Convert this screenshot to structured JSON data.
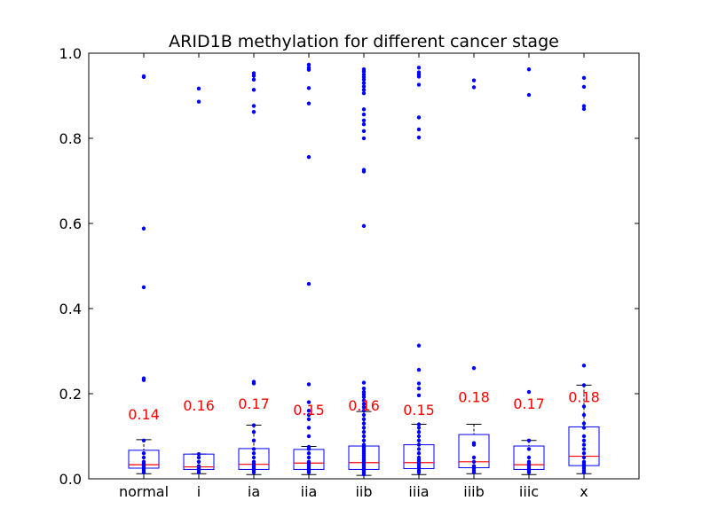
{
  "chart_data": {
    "type": "box",
    "title": "ARID1B methylation for different cancer stage",
    "xlabel": "",
    "ylabel": "",
    "ylim": [
      0.0,
      1.0
    ],
    "yticks": [
      "0.0",
      "0.2",
      "0.4",
      "0.6",
      "0.8",
      "1.0"
    ],
    "categories": [
      "normal",
      "i",
      "ia",
      "iia",
      "iib",
      "iiia",
      "iiib",
      "iiic",
      "x"
    ],
    "boxes": [
      {
        "q1": 0.025,
        "median": 0.033,
        "q3": 0.067,
        "whisker_low": 0.012,
        "whisker_high": 0.092
      },
      {
        "q1": 0.022,
        "median": 0.028,
        "q3": 0.058,
        "whisker_low": 0.012,
        "whisker_high": 0.058
      },
      {
        "q1": 0.022,
        "median": 0.034,
        "q3": 0.071,
        "whisker_low": 0.01,
        "whisker_high": 0.126
      },
      {
        "q1": 0.022,
        "median": 0.037,
        "q3": 0.069,
        "whisker_low": 0.01,
        "whisker_high": 0.076
      },
      {
        "q1": 0.022,
        "median": 0.038,
        "q3": 0.077,
        "whisker_low": 0.008,
        "whisker_high": 0.158
      },
      {
        "q1": 0.024,
        "median": 0.038,
        "q3": 0.08,
        "whisker_low": 0.01,
        "whisker_high": 0.128
      },
      {
        "q1": 0.026,
        "median": 0.04,
        "q3": 0.104,
        "whisker_low": 0.012,
        "whisker_high": 0.128
      },
      {
        "q1": 0.022,
        "median": 0.033,
        "q3": 0.077,
        "whisker_low": 0.01,
        "whisker_high": 0.09
      },
      {
        "q1": 0.031,
        "median": 0.053,
        "q3": 0.122,
        "whisker_low": 0.012,
        "whisker_high": 0.22
      }
    ],
    "points": [
      [
        0.946,
        0.944,
        0.588,
        0.45,
        0.236,
        0.232,
        0.09,
        0.06,
        0.05,
        0.04,
        0.035,
        0.03,
        0.025,
        0.02,
        0.015
      ],
      [
        0.917,
        0.886,
        0.058,
        0.05,
        0.04,
        0.03,
        0.025,
        0.02,
        0.015
      ],
      [
        0.953,
        0.947,
        0.938,
        0.914,
        0.876,
        0.862,
        0.228,
        0.224,
        0.126,
        0.11,
        0.09,
        0.07,
        0.06,
        0.05,
        0.04,
        0.035,
        0.03,
        0.025,
        0.02,
        0.015
      ],
      [
        0.973,
        0.966,
        0.961,
        0.918,
        0.882,
        0.756,
        0.458,
        0.222,
        0.18,
        0.16,
        0.15,
        0.14,
        0.12,
        0.1,
        0.075,
        0.07,
        0.06,
        0.05,
        0.04,
        0.035,
        0.03,
        0.025,
        0.02,
        0.015
      ],
      [
        0.962,
        0.957,
        0.95,
        0.944,
        0.938,
        0.93,
        0.922,
        0.914,
        0.906,
        0.868,
        0.856,
        0.842,
        0.833,
        0.817,
        0.8,
        0.726,
        0.722,
        0.594,
        0.226,
        0.212,
        0.204,
        0.198,
        0.192,
        0.184,
        0.176,
        0.168,
        0.16,
        0.15,
        0.14,
        0.13,
        0.12,
        0.11,
        0.1,
        0.09,
        0.08,
        0.075,
        0.07,
        0.065,
        0.06,
        0.055,
        0.05,
        0.045,
        0.04,
        0.035,
        0.03,
        0.025,
        0.02,
        0.015,
        0.01
      ],
      [
        0.966,
        0.955,
        0.95,
        0.945,
        0.926,
        0.849,
        0.821,
        0.802,
        0.313,
        0.256,
        0.224,
        0.212,
        0.196,
        0.128,
        0.12,
        0.11,
        0.1,
        0.09,
        0.08,
        0.07,
        0.06,
        0.05,
        0.045,
        0.04,
        0.035,
        0.03,
        0.025,
        0.02,
        0.015
      ],
      [
        0.936,
        0.92,
        0.26,
        0.084,
        0.08,
        0.05,
        0.04,
        0.03,
        0.025,
        0.02,
        0.015
      ],
      [
        0.962,
        0.902,
        0.204,
        0.09,
        0.07,
        0.05,
        0.04,
        0.035,
        0.03,
        0.025,
        0.02,
        0.015
      ],
      [
        0.942,
        0.921,
        0.876,
        0.869,
        0.266,
        0.22,
        0.17,
        0.15,
        0.13,
        0.12,
        0.1,
        0.09,
        0.08,
        0.07,
        0.06,
        0.05,
        0.04,
        0.035,
        0.03,
        0.025,
        0.02,
        0.015
      ]
    ],
    "annotations": [
      {
        "text": "0.14",
        "y": 0.14
      },
      {
        "text": "0.16",
        "y": 0.16
      },
      {
        "text": "0.17",
        "y": 0.165
      },
      {
        "text": "0.15",
        "y": 0.15
      },
      {
        "text": "0.16",
        "y": 0.16
      },
      {
        "text": "0.15",
        "y": 0.15
      },
      {
        "text": "0.18",
        "y": 0.18
      },
      {
        "text": "0.17",
        "y": 0.165
      },
      {
        "text": "0.18",
        "y": 0.18
      }
    ],
    "colors": {
      "box": "#0000ff",
      "median": "#ff0000",
      "whisker": "#000000",
      "point": "#0000ff",
      "annotation": "#ff0000"
    },
    "grid": false,
    "legend": "none"
  }
}
